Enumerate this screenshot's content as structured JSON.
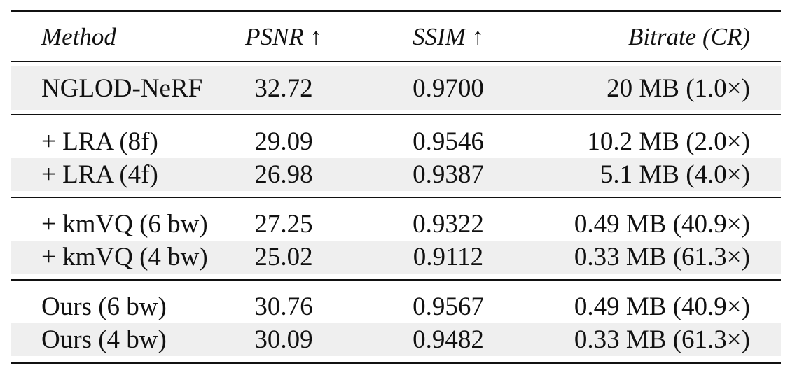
{
  "table": {
    "headers": {
      "method": "Method",
      "psnr": "PSNR ↑",
      "ssim": "SSIM ↑",
      "bitrate": "Bitrate (CR)"
    },
    "groups": [
      {
        "rows": [
          {
            "method": "NGLOD-NeRF",
            "psnr": "32.72",
            "ssim": "0.9700",
            "bitrate": "20 MB (1.0×)"
          }
        ]
      },
      {
        "rows": [
          {
            "method": "+ LRA (8f)",
            "psnr": "29.09",
            "ssim": "0.9546",
            "bitrate": "10.2 MB (2.0×)"
          },
          {
            "method": "+ LRA (4f)",
            "psnr": "26.98",
            "ssim": "0.9387",
            "bitrate": "5.1 MB (4.0×)"
          }
        ]
      },
      {
        "rows": [
          {
            "method": "+ kmVQ (6 bw)",
            "psnr": "27.25",
            "ssim": "0.9322",
            "bitrate": "0.49 MB (40.9×)"
          },
          {
            "method": "+ kmVQ (4 bw)",
            "psnr": "25.02",
            "ssim": "0.9112",
            "bitrate": "0.33 MB (61.3×)"
          }
        ]
      },
      {
        "rows": [
          {
            "method": "Ours (6 bw)",
            "psnr": "30.76",
            "ssim": "0.9567",
            "bitrate": "0.49 MB (40.9×)"
          },
          {
            "method": "Ours (4 bw)",
            "psnr": "30.09",
            "ssim": "0.9482",
            "bitrate": "0.33 MB (61.3×)"
          }
        ]
      }
    ]
  }
}
